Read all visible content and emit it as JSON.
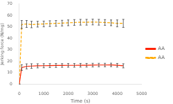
{
  "chart_data": {
    "type": "line",
    "xlabel": "Time (s)",
    "ylabel": "Jerking force (N/mg)",
    "xlim": [
      0,
      5000
    ],
    "ylim": [
      0,
      70
    ],
    "xticks": [
      0,
      1000,
      2000,
      3000,
      4000,
      5000
    ],
    "yticks": [
      0,
      10,
      20,
      30,
      40,
      50,
      60,
      70
    ],
    "grid": false,
    "legend": "right",
    "x": [
      0,
      100,
      300,
      500,
      750,
      1000,
      1250,
      1500,
      1750,
      2000,
      2250,
      2500,
      2750,
      3000,
      3250,
      3500,
      3750,
      4000,
      4250
    ],
    "series": [
      {
        "name": "AA",
        "color": "#ff2200",
        "line_style": "solid",
        "values": [
          0,
          14.5,
          15.5,
          15.8,
          16.0,
          16.1,
          16.2,
          16.3,
          16.3,
          16.4,
          16.4,
          16.5,
          16.5,
          16.6,
          16.7,
          16.7,
          16.8,
          16.5,
          16.0
        ],
        "errors": [
          0,
          2.5,
          2.2,
          2.0,
          1.8,
          1.8,
          1.7,
          1.7,
          1.6,
          1.6,
          1.6,
          1.6,
          1.6,
          1.6,
          1.5,
          1.5,
          1.5,
          1.6,
          1.8
        ]
      },
      {
        "name": "AA",
        "color": "#ffaa00",
        "line_style": "dashed",
        "values": [
          0,
          52.0,
          52.5,
          52.0,
          52.3,
          52.5,
          52.8,
          53.0,
          53.2,
          53.5,
          53.8,
          54.0,
          54.0,
          54.2,
          54.0,
          53.8,
          53.5,
          53.0,
          53.0
        ],
        "errors": [
          0,
          3.5,
          3.0,
          2.8,
          2.5,
          2.5,
          2.5,
          2.5,
          2.5,
          2.5,
          2.5,
          2.5,
          2.5,
          2.5,
          2.5,
          2.5,
          2.5,
          3.0,
          3.5
        ]
      }
    ]
  }
}
